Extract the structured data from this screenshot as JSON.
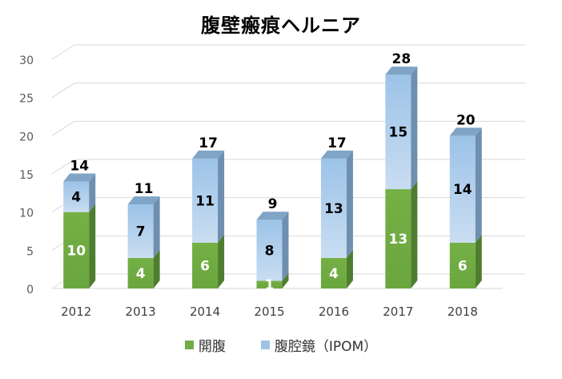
{
  "chart_data": {
    "type": "bar",
    "stacked": true,
    "title": "腹壁瘢痕ヘルニア",
    "xlabel": "",
    "ylabel": "",
    "categories": [
      "2012",
      "2013",
      "2014",
      "2015",
      "2016",
      "2017",
      "2018"
    ],
    "series": [
      {
        "name": "開腹",
        "values": [
          10,
          4,
          6,
          1,
          4,
          13,
          6
        ],
        "color": "#70ad47"
      },
      {
        "name": "腹腔鏡（IPOM）",
        "values": [
          4,
          7,
          11,
          8,
          13,
          15,
          14
        ],
        "color": "#9dc3e6"
      }
    ],
    "totals": [
      14,
      11,
      17,
      9,
      17,
      28,
      20
    ],
    "ylim": [
      0,
      30
    ],
    "yticks": [
      0,
      5,
      10,
      15,
      20,
      25,
      30
    ],
    "grid": true,
    "legend_position": "bottom"
  }
}
